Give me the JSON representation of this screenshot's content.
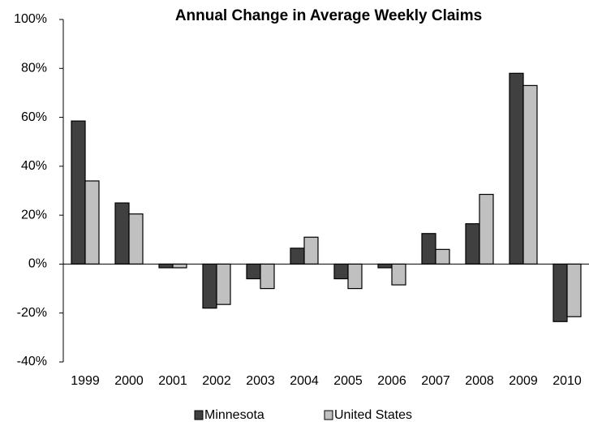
{
  "chart_data": {
    "type": "bar",
    "title": "Annual Change in Average Weekly Claims",
    "categories": [
      "1999",
      "2000",
      "2001",
      "2002",
      "2003",
      "2004",
      "2005",
      "2006",
      "2007",
      "2008",
      "2009",
      "2010"
    ],
    "series": [
      {
        "name": "Minnesota",
        "color": "#404040",
        "values": [
          58.5,
          25,
          -1.5,
          -18,
          -6,
          6.5,
          -6,
          -1.5,
          12.5,
          16.5,
          78,
          -23.5
        ]
      },
      {
        "name": "United States",
        "color": "#c0c0c0",
        "values": [
          34,
          20.5,
          -1.5,
          -16.5,
          -10,
          11,
          -10,
          -8.5,
          6,
          28.5,
          73,
          -21.5
        ]
      }
    ],
    "ylim": [
      -40,
      100
    ],
    "yticks": [
      {
        "value": -40,
        "label": "-40%"
      },
      {
        "value": -20,
        "label": "-20%"
      },
      {
        "value": 0,
        "label": "0%"
      },
      {
        "value": 20,
        "label": "20%"
      },
      {
        "value": 40,
        "label": "40%"
      },
      {
        "value": 60,
        "label": "60%"
      },
      {
        "value": 80,
        "label": "80%"
      },
      {
        "value": 100,
        "label": "100%"
      }
    ],
    "grid": false,
    "legend": "bottom"
  }
}
